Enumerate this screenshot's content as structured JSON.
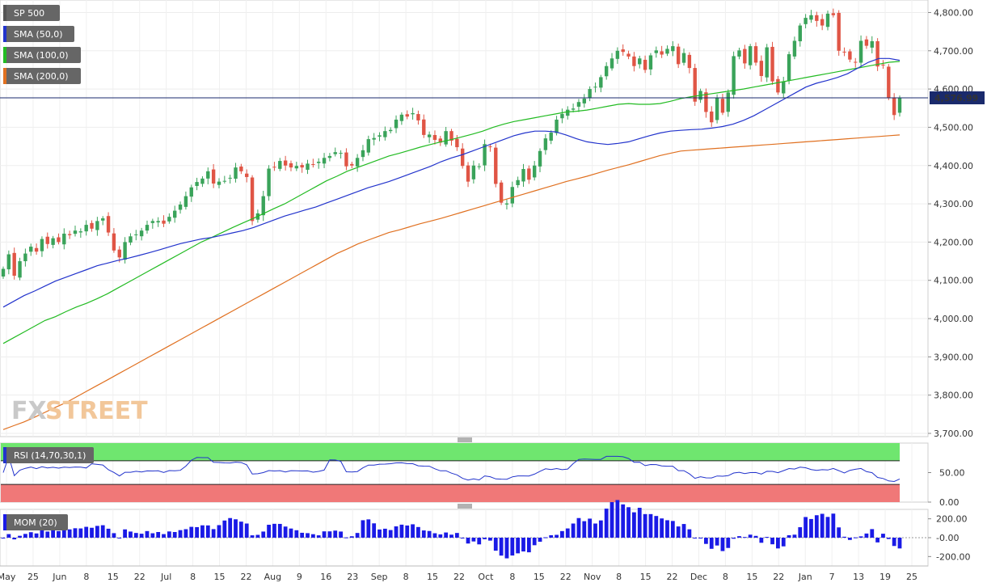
{
  "chart_data": [
    {
      "type": "candlestick",
      "title": "SP 500",
      "price_label": "4,576.99",
      "last_price": 4576.99,
      "ylim": [
        3700,
        4820
      ],
      "y_ticks": [
        3700,
        3800,
        3900,
        4000,
        4100,
        4200,
        4300,
        4400,
        4500,
        4600,
        4700,
        4800
      ],
      "y_tick_labels": [
        "3,700.00",
        "3,800.00",
        "3,900.00",
        "4,000.00",
        "4,100.00",
        "4,200.00",
        "4,300.00",
        "4,400.00",
        "4,500.00",
        "4,600.00",
        "4,700.00",
        "4,800.00"
      ],
      "x_ticks": [
        "May",
        "25",
        "Jun",
        "8",
        "15",
        "22",
        "Jul",
        "8",
        "15",
        "22",
        "Aug",
        "9",
        "16",
        "23",
        "Sep",
        "8",
        "15",
        "22",
        "Oct",
        "8",
        "15",
        "22",
        "Nov",
        "8",
        "15",
        "22",
        "Dec",
        "8",
        "15",
        "22",
        "Jan",
        "7",
        "13",
        "19",
        "25"
      ],
      "legend": [
        {
          "name": "SP 500",
          "color": "#555555"
        },
        {
          "name": "SMA (50,0)",
          "color": "#2233cc"
        },
        {
          "name": "SMA (100,0)",
          "color": "#22bb22"
        },
        {
          "name": "SMA (200,0)",
          "color": "#e07020"
        }
      ],
      "close_series": [
        4130,
        4168,
        4112,
        4150,
        4170,
        4188,
        4175,
        4208,
        4195,
        4210,
        4200,
        4222,
        4218,
        4230,
        4228,
        4245,
        4235,
        4255,
        4262,
        4225,
        4178,
        4160,
        4200,
        4215,
        4220,
        4230,
        4245,
        4255,
        4255,
        4248,
        4266,
        4282,
        4298,
        4320,
        4343,
        4357,
        4366,
        4385,
        4353,
        4358,
        4360,
        4368,
        4395,
        4385,
        4370,
        4255,
        4275,
        4320,
        4392,
        4395,
        4412,
        4400,
        4395,
        4399,
        4395,
        4405,
        4403,
        4410,
        4420,
        4425,
        4435,
        4433,
        4398,
        4400,
        4420,
        4440,
        4469,
        4472,
        4479,
        4490,
        4493,
        4520,
        4533,
        4528,
        4537,
        4518,
        4480,
        4481,
        4467,
        4460,
        4490,
        4465,
        4448,
        4399,
        4358,
        4400,
        4398,
        4456,
        4448,
        4352,
        4303,
        4301,
        4344,
        4362,
        4391,
        4363,
        4400,
        4438,
        4471,
        4486,
        4520,
        4535,
        4546,
        4549,
        4566,
        4575,
        4600,
        4606,
        4631,
        4660,
        4680,
        4700,
        4697,
        4685,
        4660,
        4680,
        4650,
        4688,
        4701,
        4690,
        4705,
        4712,
        4665,
        4694,
        4655,
        4567,
        4595,
        4540,
        4513,
        4577,
        4538,
        4591,
        4686,
        4701,
        4667,
        4712,
        4669,
        4634,
        4709,
        4620,
        4591,
        4620,
        4691,
        4726,
        4766,
        4786,
        4793,
        4778,
        4766,
        4797,
        4793,
        4700,
        4696,
        4677,
        4670,
        4726,
        4713,
        4725,
        4659,
        4662,
        4577,
        4532,
        4576.99
      ],
      "sma50": [
        4030,
        4045,
        4060,
        4072,
        4085,
        4098,
        4108,
        4118,
        4128,
        4138,
        4145,
        4152,
        4158,
        4165,
        4172,
        4180,
        4188,
        4196,
        4202,
        4208,
        4212,
        4218,
        4224,
        4230,
        4238,
        4248,
        4258,
        4268,
        4276,
        4284,
        4292,
        4302,
        4312,
        4322,
        4332,
        4342,
        4350,
        4358,
        4368,
        4378,
        4388,
        4398,
        4410,
        4420,
        4428,
        4438,
        4448,
        4458,
        4468,
        4478,
        4485,
        4490,
        4490,
        4488,
        4480,
        4470,
        4462,
        4458,
        4455,
        4458,
        4462,
        4470,
        4478,
        4485,
        4490,
        4492,
        4494,
        4495,
        4498,
        4502,
        4508,
        4518,
        4530,
        4545,
        4560,
        4575,
        4590,
        4605,
        4615,
        4622,
        4630,
        4640,
        4655,
        4670,
        4680,
        4680,
        4675
      ],
      "sma100": [
        3935,
        3950,
        3965,
        3980,
        3995,
        4005,
        4018,
        4030,
        4040,
        4052,
        4065,
        4080,
        4095,
        4110,
        4125,
        4140,
        4155,
        4170,
        4185,
        4200,
        4212,
        4225,
        4238,
        4250,
        4262,
        4275,
        4288,
        4300,
        4315,
        4330,
        4345,
        4360,
        4372,
        4385,
        4395,
        4405,
        4415,
        4425,
        4432,
        4440,
        4448,
        4455,
        4462,
        4468,
        4475,
        4482,
        4490,
        4500,
        4508,
        4515,
        4520,
        4525,
        4530,
        4535,
        4540,
        4542,
        4545,
        4550,
        4555,
        4560,
        4562,
        4560,
        4560,
        4562,
        4568,
        4575,
        4580,
        4584,
        4588,
        4592,
        4596,
        4600,
        4605,
        4610,
        4615,
        4620,
        4625,
        4630,
        4635,
        4640,
        4645,
        4650,
        4655,
        4660,
        4665,
        4670,
        4672
      ],
      "sma200": [
        3710,
        3720,
        3730,
        3742,
        3755,
        3768,
        3780,
        3795,
        3810,
        3825,
        3840,
        3855,
        3870,
        3885,
        3900,
        3915,
        3930,
        3945,
        3960,
        3975,
        3990,
        4005,
        4020,
        4035,
        4050,
        4065,
        4080,
        4095,
        4110,
        4125,
        4140,
        4155,
        4170,
        4182,
        4195,
        4205,
        4215,
        4225,
        4232,
        4240,
        4248,
        4255,
        4262,
        4270,
        4278,
        4286,
        4294,
        4302,
        4310,
        4318,
        4326,
        4334,
        4342,
        4350,
        4358,
        4365,
        4372,
        4380,
        4388,
        4395,
        4402,
        4410,
        4418,
        4426,
        4432,
        4438,
        4440,
        4442,
        4444,
        4446,
        4448,
        4450,
        4452,
        4454,
        4456,
        4458,
        4460,
        4462,
        4464,
        4466,
        4468,
        4470,
        4472,
        4474,
        4476,
        4478,
        4480
      ]
    },
    {
      "type": "line",
      "title": "RSI (14,70,30,1)",
      "ylim": [
        0,
        100
      ],
      "y_ticks": [
        0,
        50
      ],
      "y_tick_labels": [
        "0.00",
        "50.00"
      ],
      "overbought": 70,
      "oversold": 30
    },
    {
      "type": "bar",
      "title": "MOM (20)",
      "ylim": [
        -300,
        300
      ],
      "y_ticks": [
        200,
        0,
        -200
      ],
      "y_tick_labels": [
        "200.00",
        "-0.00",
        "-200.00"
      ]
    }
  ],
  "brand": {
    "text_fx": "FX",
    "text_street": "STREET"
  },
  "colors": {
    "bull": "#3aa35a",
    "bear": "#e05545",
    "sma50": "#2233cc",
    "sma100": "#22bb22",
    "sma200": "#e07020",
    "mom": "#1a1ae6",
    "rsi_line": "#2233cc",
    "rsi_top": "#6fe66f",
    "rsi_bottom": "#f07878"
  }
}
